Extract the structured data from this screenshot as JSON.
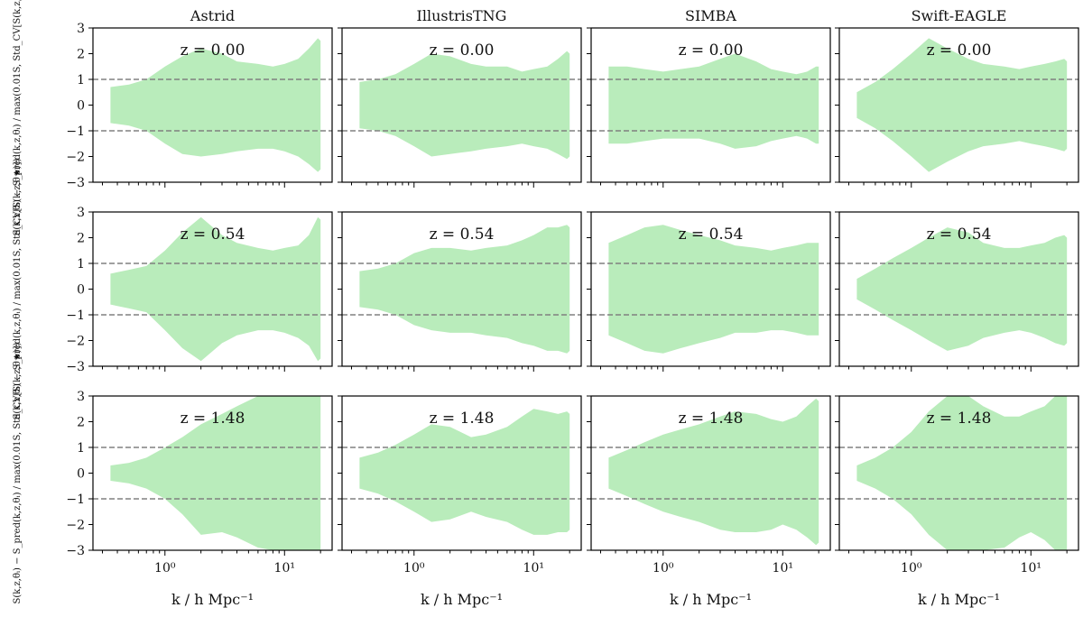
{
  "figure": {
    "columns": [
      "Astrid",
      "IllustrisTNG",
      "SIMBA",
      "Swift-EAGLE"
    ],
    "redshifts": [
      "z = 0.00",
      "z = 0.54",
      "z = 1.48"
    ],
    "xlabel": "k / h Mpc⁻¹",
    "ylabel": "S(k,z,θᵢ) − S_pred(k,z,θᵢ) / max(0.01S, Std_CV[S(k,z,θ★)])",
    "ytick_labels": [
      "−3",
      "−2",
      "−1",
      "0",
      "1",
      "2",
      "3"
    ],
    "xtick_labels": [
      "10⁰",
      "10¹"
    ],
    "colors": {
      "band": "#b9ecbb",
      "dashed": "#808080",
      "axes": "#000000"
    }
  },
  "chart_data": {
    "type": "area",
    "title": "",
    "xscale": "log",
    "xlim": [
      0.25,
      25
    ],
    "ylim": [
      -3,
      3
    ],
    "ylabel": "S(k,z,θᵢ) − S_pred(k,z,θᵢ) / max(0.01S, Std_CV[S(k,z,θ★)])",
    "xlabel": "k / h Mpc⁻¹",
    "reference_lines": [
      1,
      -1
    ],
    "k": [
      0.35,
      0.5,
      0.7,
      1.0,
      1.4,
      2.0,
      3.0,
      4.0,
      6.0,
      8.0,
      10.0,
      13.0,
      16.0,
      19.0,
      20.0
    ],
    "panels": [
      {
        "column": "Astrid",
        "z": "0.00",
        "upper": [
          0.7,
          0.8,
          1.0,
          1.5,
          1.9,
          2.2,
          2.0,
          1.7,
          1.6,
          1.5,
          1.6,
          1.8,
          2.2,
          2.6,
          2.5
        ],
        "lower": [
          -0.7,
          -0.8,
          -1.0,
          -1.5,
          -1.9,
          -2.0,
          -1.9,
          -1.8,
          -1.7,
          -1.7,
          -1.8,
          -2.0,
          -2.3,
          -2.6,
          -2.5
        ]
      },
      {
        "column": "Astrid",
        "z": "0.54",
        "upper": [
          0.6,
          0.75,
          0.9,
          1.5,
          2.2,
          2.8,
          2.1,
          1.8,
          1.6,
          1.5,
          1.6,
          1.7,
          2.1,
          2.8,
          2.7
        ],
        "lower": [
          -0.6,
          -0.75,
          -0.9,
          -1.6,
          -2.3,
          -2.8,
          -2.1,
          -1.8,
          -1.6,
          -1.6,
          -1.7,
          -1.9,
          -2.2,
          -2.8,
          -2.7
        ]
      },
      {
        "column": "Astrid",
        "z": "1.48",
        "upper": [
          0.3,
          0.4,
          0.6,
          1.0,
          1.4,
          1.9,
          2.3,
          2.6,
          3.0,
          3.0,
          3.0,
          3.0,
          3.0,
          3.0,
          3.0
        ],
        "lower": [
          -0.3,
          -0.4,
          -0.6,
          -1.0,
          -1.6,
          -2.4,
          -2.3,
          -2.5,
          -2.9,
          -3.0,
          -3.0,
          -3.0,
          -3.0,
          -3.0,
          -3.0
        ]
      },
      {
        "column": "IllustrisTNG",
        "z": "0.00",
        "upper": [
          0.9,
          1.0,
          1.2,
          1.6,
          2.0,
          1.9,
          1.6,
          1.5,
          1.5,
          1.3,
          1.4,
          1.5,
          1.8,
          2.1,
          2.0
        ],
        "lower": [
          -0.9,
          -1.0,
          -1.2,
          -1.6,
          -2.0,
          -1.9,
          -1.8,
          -1.7,
          -1.6,
          -1.5,
          -1.6,
          -1.7,
          -1.9,
          -2.1,
          -2.0
        ]
      },
      {
        "column": "IllustrisTNG",
        "z": "0.54",
        "upper": [
          0.7,
          0.8,
          1.0,
          1.4,
          1.6,
          1.6,
          1.5,
          1.6,
          1.7,
          1.9,
          2.1,
          2.4,
          2.4,
          2.5,
          2.4
        ],
        "lower": [
          -0.7,
          -0.8,
          -1.0,
          -1.4,
          -1.6,
          -1.7,
          -1.7,
          -1.8,
          -1.9,
          -2.1,
          -2.2,
          -2.4,
          -2.4,
          -2.5,
          -2.4
        ]
      },
      {
        "column": "IllustrisTNG",
        "z": "1.48",
        "upper": [
          0.6,
          0.8,
          1.1,
          1.5,
          1.9,
          1.8,
          1.4,
          1.5,
          1.8,
          2.2,
          2.5,
          2.4,
          2.3,
          2.4,
          2.3
        ],
        "lower": [
          -0.6,
          -0.8,
          -1.1,
          -1.5,
          -1.9,
          -1.8,
          -1.5,
          -1.7,
          -1.9,
          -2.2,
          -2.4,
          -2.4,
          -2.3,
          -2.3,
          -2.2
        ]
      },
      {
        "column": "SIMBA",
        "z": "0.00",
        "upper": [
          1.5,
          1.5,
          1.4,
          1.3,
          1.4,
          1.5,
          1.8,
          2.0,
          1.7,
          1.4,
          1.3,
          1.2,
          1.3,
          1.5,
          1.5
        ],
        "lower": [
          -1.5,
          -1.5,
          -1.4,
          -1.3,
          -1.3,
          -1.3,
          -1.5,
          -1.7,
          -1.6,
          -1.4,
          -1.3,
          -1.2,
          -1.3,
          -1.5,
          -1.5
        ]
      },
      {
        "column": "SIMBA",
        "z": "0.54",
        "upper": [
          1.8,
          2.1,
          2.4,
          2.5,
          2.3,
          2.1,
          1.9,
          1.7,
          1.6,
          1.5,
          1.6,
          1.7,
          1.8,
          1.8,
          1.8
        ],
        "lower": [
          -1.8,
          -2.1,
          -2.4,
          -2.5,
          -2.3,
          -2.1,
          -1.9,
          -1.7,
          -1.7,
          -1.6,
          -1.6,
          -1.7,
          -1.8,
          -1.8,
          -1.8
        ]
      },
      {
        "column": "SIMBA",
        "z": "1.48",
        "upper": [
          0.6,
          0.9,
          1.2,
          1.5,
          1.7,
          1.9,
          2.2,
          2.4,
          2.3,
          2.1,
          2.0,
          2.2,
          2.6,
          2.9,
          2.8
        ],
        "lower": [
          -0.6,
          -0.9,
          -1.2,
          -1.5,
          -1.7,
          -1.9,
          -2.2,
          -2.3,
          -2.3,
          -2.2,
          -2.0,
          -2.2,
          -2.5,
          -2.8,
          -2.7
        ]
      },
      {
        "column": "Swift-EAGLE",
        "z": "0.00",
        "upper": [
          0.5,
          0.9,
          1.4,
          2.0,
          2.6,
          2.2,
          1.8,
          1.6,
          1.5,
          1.4,
          1.5,
          1.6,
          1.7,
          1.8,
          1.7
        ],
        "lower": [
          -0.5,
          -0.9,
          -1.4,
          -2.0,
          -2.6,
          -2.2,
          -1.8,
          -1.6,
          -1.5,
          -1.4,
          -1.5,
          -1.6,
          -1.7,
          -1.8,
          -1.7
        ]
      },
      {
        "column": "Swift-EAGLE",
        "z": "0.54",
        "upper": [
          0.4,
          0.8,
          1.2,
          1.6,
          2.0,
          2.4,
          2.2,
          1.8,
          1.6,
          1.6,
          1.7,
          1.8,
          2.0,
          2.1,
          2.0
        ],
        "lower": [
          -0.4,
          -0.8,
          -1.2,
          -1.6,
          -2.0,
          -2.4,
          -2.2,
          -1.9,
          -1.7,
          -1.6,
          -1.7,
          -1.9,
          -2.1,
          -2.2,
          -2.1
        ]
      },
      {
        "column": "Swift-EAGLE",
        "z": "1.48",
        "upper": [
          0.3,
          0.6,
          1.0,
          1.6,
          2.4,
          3.0,
          3.0,
          2.6,
          2.2,
          2.2,
          2.4,
          2.6,
          3.0,
          3.0,
          3.0
        ],
        "lower": [
          -0.3,
          -0.6,
          -1.0,
          -1.6,
          -2.4,
          -3.0,
          -3.0,
          -3.0,
          -2.9,
          -2.5,
          -2.3,
          -2.6,
          -3.0,
          -3.0,
          -3.0
        ]
      }
    ]
  }
}
